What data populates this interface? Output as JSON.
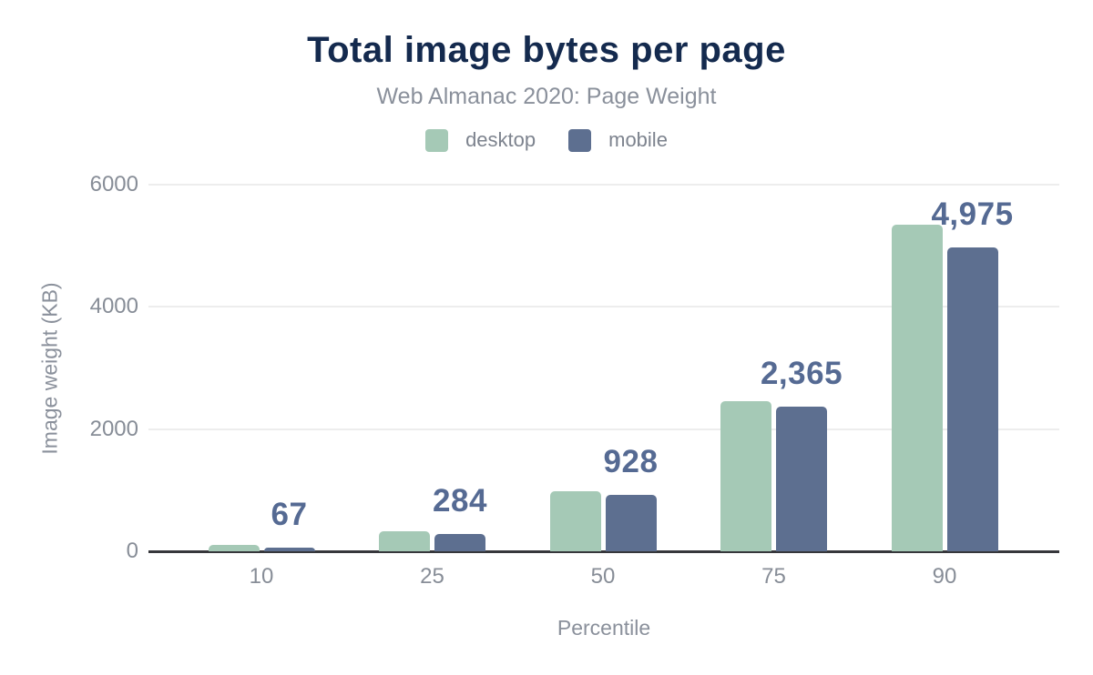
{
  "chart_data": {
    "type": "bar",
    "title": "Total image bytes per page",
    "subtitle": "Web Almanac 2020: Page Weight",
    "xlabel": "Percentile",
    "ylabel": "Image weight (KB)",
    "categories": [
      "10",
      "25",
      "50",
      "75",
      "90"
    ],
    "series": [
      {
        "name": "desktop",
        "color": "#a5c9b6",
        "values": [
          100,
          330,
          990,
          2450,
          5350
        ]
      },
      {
        "name": "mobile",
        "color": "#5d6f90",
        "values": [
          67,
          284,
          928,
          2365,
          4975
        ]
      }
    ],
    "data_labels": {
      "series": "mobile",
      "formatted": [
        "67",
        "284",
        "928",
        "2,365",
        "4,975"
      ]
    },
    "ylim": [
      0,
      6000
    ],
    "yticks": [
      0,
      2000,
      4000,
      6000
    ],
    "ytick_labels": [
      "0",
      "2000",
      "4000",
      "6000"
    ],
    "grid": "horizontal",
    "legend_position": "top"
  },
  "colors": {
    "title": "#142a4e",
    "subtitle": "#8a909b",
    "tick": "#878d97",
    "legend_text": "#7d838e",
    "data_label": "#556a93",
    "grid": "#ededed",
    "axis": "#36373b",
    "background": "#ffffff"
  }
}
